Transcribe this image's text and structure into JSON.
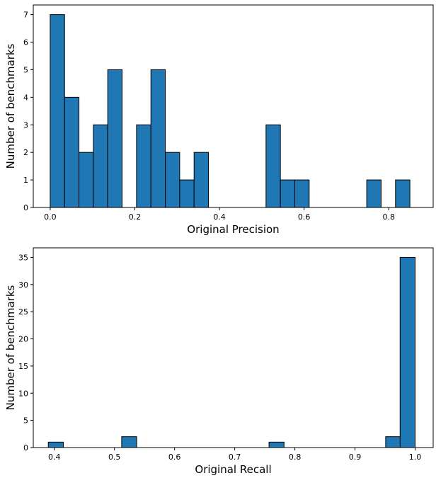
{
  "chart_data": [
    {
      "type": "bar",
      "xlabel": "Original Precision",
      "ylabel": "Number of benchmarks",
      "xlim": [
        -0.04,
        0.905
      ],
      "ylim": [
        0,
        7.35
      ],
      "xticks": [
        0.0,
        0.2,
        0.4,
        0.6,
        0.8
      ],
      "xtick_labels": [
        "0.0",
        "0.2",
        "0.4",
        "0.6",
        "0.8"
      ],
      "yticks": [
        0,
        1,
        2,
        3,
        4,
        5,
        6,
        7
      ],
      "ytick_labels": [
        "0",
        "1",
        "2",
        "3",
        "4",
        "5",
        "6",
        "7"
      ],
      "bin_width": 0.034,
      "bins": [
        {
          "x": 0.0,
          "count": 7
        },
        {
          "x": 0.034,
          "count": 4
        },
        {
          "x": 0.068,
          "count": 2
        },
        {
          "x": 0.102,
          "count": 3
        },
        {
          "x": 0.136,
          "count": 5
        },
        {
          "x": 0.204,
          "count": 3
        },
        {
          "x": 0.238,
          "count": 5
        },
        {
          "x": 0.272,
          "count": 2
        },
        {
          "x": 0.306,
          "count": 1
        },
        {
          "x": 0.34,
          "count": 2
        },
        {
          "x": 0.51,
          "count": 3
        },
        {
          "x": 0.544,
          "count": 1
        },
        {
          "x": 0.578,
          "count": 1
        },
        {
          "x": 0.748,
          "count": 1
        },
        {
          "x": 0.816,
          "count": 1
        }
      ],
      "bar_color": "#1f77b4",
      "edge_color": "#000000"
    },
    {
      "type": "bar",
      "xlabel": "Original Recall",
      "ylabel": "Number of benchmarks",
      "xlim": [
        0.365,
        1.03
      ],
      "ylim": [
        0,
        36.75
      ],
      "xticks": [
        0.4,
        0.5,
        0.6,
        0.7,
        0.8,
        0.9,
        1.0
      ],
      "xtick_labels": [
        "0.4",
        "0.5",
        "0.6",
        "0.7",
        "0.8",
        "0.9",
        "1.0"
      ],
      "yticks": [
        0,
        5,
        10,
        15,
        20,
        25,
        30,
        35
      ],
      "ytick_labels": [
        "0",
        "5",
        "10",
        "15",
        "20",
        "25",
        "30",
        "35"
      ],
      "bin_width": 0.025,
      "bins": [
        {
          "x": 0.39,
          "count": 1
        },
        {
          "x": 0.512,
          "count": 2
        },
        {
          "x": 0.757,
          "count": 1
        },
        {
          "x": 0.951,
          "count": 2
        },
        {
          "x": 0.975,
          "count": 35
        }
      ],
      "bar_color": "#1f77b4",
      "edge_color": "#000000"
    }
  ]
}
